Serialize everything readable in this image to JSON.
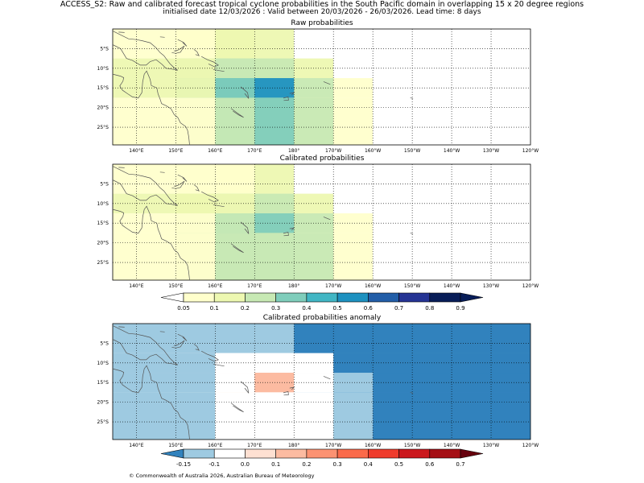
{
  "header": {
    "title_line1": "ACCESS_S2: Raw and calibrated forecast tropical cyclone probabilities in the South Pacific domain in overlapping 15 x 20 degree regions",
    "title_line2": "initialised date 12/03/2026 :  Valid between 20/03/2026 - 26/03/2026. Lead time: 8 days"
  },
  "maps": [
    {
      "title": "Raw probabilities",
      "cells": [
        [
          0.05,
          0.1,
          0.1,
          null,
          null,
          null,
          null,
          null,
          null,
          null,
          null
        ],
        [
          0.1,
          0.2,
          0.2,
          0.1,
          null,
          null,
          null,
          null,
          null,
          null,
          null
        ],
        [
          0.1,
          0.3,
          0.5,
          0.2,
          0.05,
          null,
          null,
          null,
          null,
          null,
          null
        ],
        [
          0.05,
          0.2,
          0.3,
          0.2,
          0.05,
          null,
          null,
          null,
          null,
          null,
          null
        ]
      ]
    },
    {
      "title": "Calibrated probabilities",
      "cells": [
        [
          0.05,
          0.05,
          0.1,
          null,
          null,
          null,
          null,
          null,
          null,
          null,
          null
        ],
        [
          0.1,
          0.1,
          0.2,
          0.1,
          null,
          null,
          null,
          null,
          null,
          null,
          null
        ],
        [
          0.05,
          0.2,
          0.3,
          0.2,
          0.05,
          null,
          null,
          null,
          null,
          null,
          null
        ],
        [
          0.05,
          0.2,
          0.2,
          0.2,
          0.05,
          null,
          null,
          null,
          null,
          null,
          null
        ]
      ]
    },
    {
      "title": "Calibrated probabilities anomaly",
      "cells": [
        [
          -0.1,
          -0.1,
          -0.1,
          -0.15,
          -0.15,
          -0.15,
          -0.15,
          -0.15,
          -0.15,
          -0.15,
          -0.15
        ],
        [
          -0.1,
          0.0,
          0.05,
          0.0,
          -0.15,
          -0.15,
          -0.15,
          -0.15,
          -0.15,
          -0.15,
          -0.15
        ],
        [
          -0.1,
          0.05,
          0.2,
          0.05,
          -0.1,
          -0.15,
          -0.15,
          -0.15,
          -0.15,
          -0.15,
          -0.15
        ],
        [
          -0.1,
          0.05,
          0.05,
          0.05,
          -0.1,
          -0.15,
          -0.15,
          -0.15,
          -0.15,
          -0.15,
          -0.15
        ]
      ]
    }
  ],
  "axes": {
    "lat_labels": [
      "5°S",
      "10°S",
      "15°S",
      "20°S",
      "25°S"
    ],
    "lat_values": [
      -5,
      -10,
      -15,
      -20,
      -25
    ],
    "lon_labels": [
      "140°E",
      "150°E",
      "160°E",
      "170°E",
      "180°",
      "170°W",
      "160°W",
      "150°W",
      "140°W",
      "130°W",
      "120°W"
    ],
    "lon_values": [
      140,
      150,
      160,
      170,
      180,
      190,
      200,
      210,
      220,
      230,
      240
    ],
    "lon_range": [
      134,
      240
    ],
    "lat_range": [
      0,
      -29.5
    ]
  },
  "colorbar_prob": {
    "labels": [
      "0.05",
      "0.1",
      "0.2",
      "0.3",
      "0.4",
      "0.5",
      "0.6",
      "0.7",
      "0.8",
      "0.9"
    ],
    "colors": [
      "#ffffff",
      "#ffffcc",
      "#edf8b1",
      "#c7e9b4",
      "#7fcdbb",
      "#41b6c4",
      "#1d91c0",
      "#225ea8",
      "#253494",
      "#081d58",
      "#081d58"
    ]
  },
  "colorbar_anom": {
    "labels": [
      "-0.15",
      "-0.1",
      "0.0",
      "0.1",
      "0.2",
      "0.3",
      "0.4",
      "0.5",
      "0.6",
      "0.7"
    ],
    "colors": [
      "#3182bd",
      "#9ecae1",
      "#ffffff",
      "#fee0d2",
      "#fcbba1",
      "#fc9272",
      "#fb6a4a",
      "#ef3b2c",
      "#cb181d",
      "#a50f15",
      "#67000d"
    ]
  },
  "footer": "© Commonwealth of Australia 2026, Australian Bureau of Meteorology"
}
